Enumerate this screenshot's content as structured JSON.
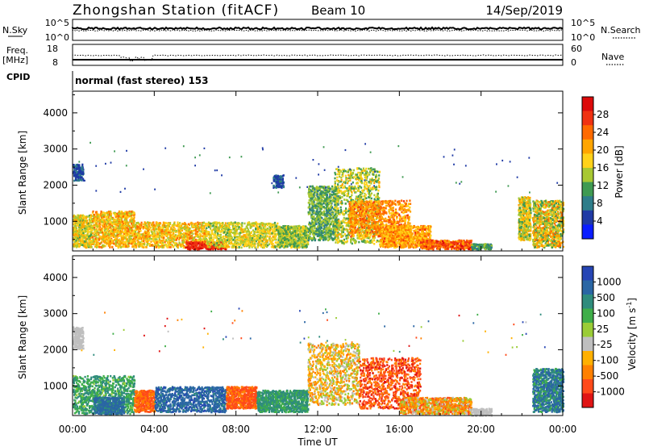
{
  "header": {
    "station": "Zhongshan Station (fitACF)",
    "beam": "Beam 10",
    "date": "14/Sep/2019"
  },
  "nsky_panel": {
    "left_label": "N.Sky",
    "left_ticks": [
      "10^5",
      "10^0"
    ],
    "right_label": "N.Search",
    "right_ticks": [
      "10^5",
      "10^0"
    ]
  },
  "freq_panel": {
    "left_label": "Freq.",
    "left_unit": "[MHz]",
    "left_ticks": [
      "18",
      "8"
    ],
    "right_label": "Nave",
    "right_ticks": [
      "60",
      "0"
    ]
  },
  "cpid": {
    "label": "CPID",
    "value": "normal (fast stereo) 153"
  },
  "x_axis": {
    "label": "Time UT",
    "ticks": [
      "00:00",
      "04:00",
      "08:00",
      "12:00",
      "16:00",
      "20:00",
      "00:00"
    ]
  },
  "colors": {
    "power": [
      "#0a1dff",
      "#1f3aa5",
      "#2e7d8a",
      "#3f9a52",
      "#a8c832",
      "#ffd21a",
      "#ffa500",
      "#ff6a00",
      "#f03212",
      "#dc0a0a"
    ],
    "velocity": [
      "#2645b4",
      "#2a66a4",
      "#2f8c7d",
      "#3fae49",
      "#9acc36",
      "#bfbfbf",
      "#ffb000",
      "#ff8000",
      "#ff4a1a",
      "#e01414"
    ]
  },
  "chart_data": [
    {
      "type": "heatmap",
      "title": "",
      "ylabel": "Slant Range [km]",
      "ylim": [
        180,
        4600
      ],
      "yticks": [
        "1000",
        "2000",
        "3000",
        "4000"
      ],
      "xlim": [
        0,
        24
      ],
      "colorbar_label": "Power [dB]",
      "colorbar_ticks": [
        "4",
        "8",
        "12",
        "16",
        "20",
        "24",
        "28"
      ],
      "patches": [
        {
          "x": [
            0.0,
            0.9
          ],
          "y": [
            300,
            1200
          ],
          "v": [
            12,
            22
          ]
        },
        {
          "x": [
            0.0,
            0.5
          ],
          "y": [
            2150,
            2600
          ],
          "v": [
            4,
            8
          ]
        },
        {
          "x": [
            0.9,
            3.0
          ],
          "y": [
            300,
            1300
          ],
          "v": [
            14,
            24
          ]
        },
        {
          "x": [
            3.0,
            6.5
          ],
          "y": [
            300,
            1000
          ],
          "v": [
            14,
            24
          ]
        },
        {
          "x": [
            5.5,
            7.5
          ],
          "y": [
            250,
            450
          ],
          "v": [
            26,
            30
          ]
        },
        {
          "x": [
            6.5,
            10.0
          ],
          "y": [
            300,
            1000
          ],
          "v": [
            12,
            20
          ]
        },
        {
          "x": [
            9.8,
            10.3
          ],
          "y": [
            1950,
            2300
          ],
          "v": [
            4,
            8
          ]
        },
        {
          "x": [
            10.0,
            11.5
          ],
          "y": [
            300,
            900
          ],
          "v": [
            10,
            18
          ]
        },
        {
          "x": [
            11.5,
            13.0
          ],
          "y": [
            500,
            2000
          ],
          "v": [
            8,
            16
          ]
        },
        {
          "x": [
            12.8,
            15.0
          ],
          "y": [
            400,
            2500
          ],
          "v": [
            10,
            20
          ]
        },
        {
          "x": [
            13.5,
            16.5
          ],
          "y": [
            600,
            1600
          ],
          "v": [
            18,
            26
          ]
        },
        {
          "x": [
            15.0,
            17.5
          ],
          "y": [
            300,
            900
          ],
          "v": [
            16,
            26
          ]
        },
        {
          "x": [
            17.0,
            19.5
          ],
          "y": [
            250,
            500
          ],
          "v": [
            20,
            30
          ]
        },
        {
          "x": [
            19.5,
            20.5
          ],
          "y": [
            250,
            400
          ],
          "v": [
            8,
            14
          ]
        },
        {
          "x": [
            21.8,
            22.4
          ],
          "y": [
            500,
            1700
          ],
          "v": [
            10,
            22
          ]
        },
        {
          "x": [
            22.5,
            24.0
          ],
          "y": [
            300,
            1600
          ],
          "v": [
            10,
            24
          ]
        }
      ]
    },
    {
      "type": "heatmap",
      "title": "",
      "ylabel": "Slant Range [km]",
      "ylim": [
        180,
        4600
      ],
      "yticks": [
        "1000",
        "2000",
        "3000",
        "4000"
      ],
      "xlim": [
        0,
        24
      ],
      "colorbar_label": "Velocity [m s^-1]",
      "colorbar_ticks": [
        "1000",
        "500",
        "100",
        "25",
        "-25",
        "-100",
        "-500",
        "-1000"
      ],
      "patches": [
        {
          "x": [
            0.0,
            0.5
          ],
          "y": [
            2050,
            2650
          ],
          "v": [
            -20,
            20
          ]
        },
        {
          "x": [
            0.0,
            3.0
          ],
          "y": [
            250,
            1300
          ],
          "v": [
            80,
            400
          ]
        },
        {
          "x": [
            1.0,
            2.5
          ],
          "y": [
            250,
            700
          ],
          "v": [
            300,
            900
          ]
        },
        {
          "x": [
            3.0,
            4.0
          ],
          "y": [
            300,
            900
          ],
          "v": [
            -400,
            -100
          ]
        },
        {
          "x": [
            4.0,
            7.5
          ],
          "y": [
            300,
            1000
          ],
          "v": [
            400,
            1100
          ]
        },
        {
          "x": [
            7.5,
            9.0
          ],
          "y": [
            400,
            1000
          ],
          "v": [
            -500,
            -120
          ]
        },
        {
          "x": [
            9.0,
            11.5
          ],
          "y": [
            300,
            900
          ],
          "v": [
            100,
            500
          ]
        },
        {
          "x": [
            11.5,
            14.0
          ],
          "y": [
            500,
            2200
          ],
          "v": [
            -150,
            80
          ]
        },
        {
          "x": [
            14.0,
            17.0
          ],
          "y": [
            400,
            1800
          ],
          "v": [
            -600,
            -100
          ]
        },
        {
          "x": [
            16.0,
            19.5
          ],
          "y": [
            250,
            700
          ],
          "v": [
            -300,
            100
          ]
        },
        {
          "x": [
            19.5,
            20.5
          ],
          "y": [
            200,
            400
          ],
          "v": [
            -20,
            20
          ]
        },
        {
          "x": [
            22.5,
            24.0
          ],
          "y": [
            300,
            1500
          ],
          "v": [
            100,
            1000
          ]
        }
      ]
    }
  ]
}
